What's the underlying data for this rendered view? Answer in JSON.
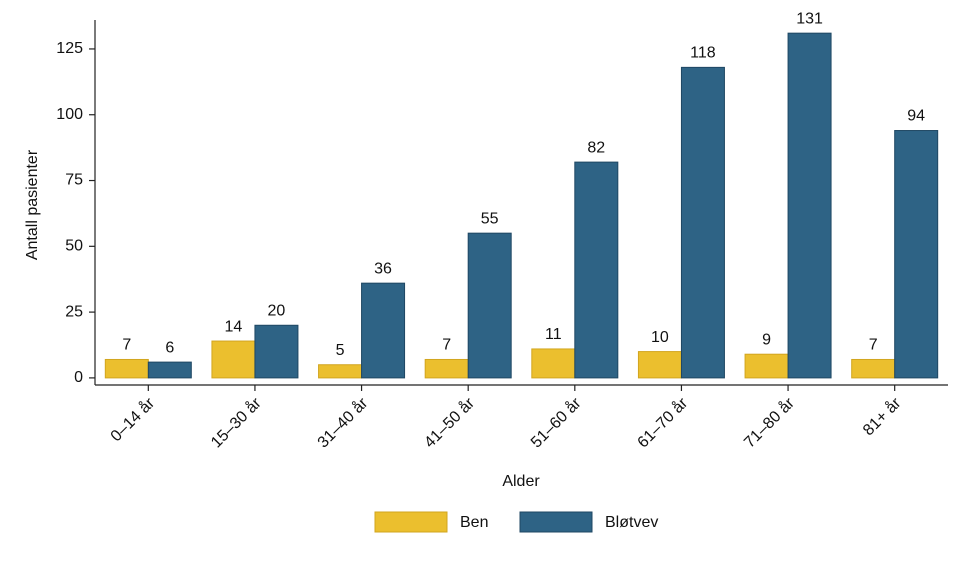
{
  "chart_data": {
    "type": "bar",
    "x_label": "Alder",
    "y_label": "Antall pasienter",
    "categories": [
      "0–14 år",
      "15–30 år",
      "31–40 år",
      "41–50 år",
      "51–60 år",
      "61–70 år",
      "71–80 år",
      "81+ år"
    ],
    "series": [
      {
        "name": "Ben",
        "color": "#ebbf2e",
        "values": [
          7,
          14,
          5,
          7,
          11,
          10,
          9,
          7
        ]
      },
      {
        "name": "Bløtvev",
        "color": "#2e6385",
        "values": [
          6,
          20,
          36,
          55,
          82,
          118,
          131,
          94
        ]
      }
    ],
    "ylim": [
      -2.7,
      136
    ],
    "yticks": [
      0,
      25,
      50,
      75,
      100,
      125
    ],
    "grid": false,
    "legend": "bottom"
  }
}
